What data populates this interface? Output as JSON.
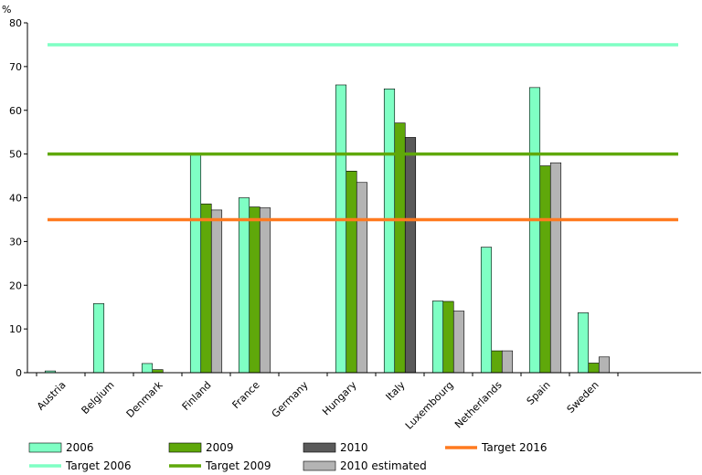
{
  "chart_data": {
    "type": "bar",
    "ylabel": "%",
    "ylim": [
      0,
      80
    ],
    "yticks": [
      0,
      10,
      20,
      30,
      40,
      50,
      60,
      70,
      80
    ],
    "categories": [
      "Austria",
      "Belgium",
      "Denmark",
      "Finland",
      "France",
      "Germany",
      "Hungary",
      "Italy",
      "Luxembourg",
      "Netherlands",
      "Spain",
      "Sweden"
    ],
    "series": [
      {
        "name": "2006",
        "color": "#7fffc4",
        "values": [
          0.4,
          15.8,
          2.1,
          50.0,
          40.0,
          0,
          65.8,
          64.9,
          16.4,
          28.7,
          65.2,
          13.7
        ]
      },
      {
        "name": "2009",
        "color": "#5fa80a",
        "values": [
          0,
          0,
          0.7,
          38.6,
          37.9,
          0,
          46.1,
          57.1,
          16.3,
          5.0,
          47.3,
          2.2
        ]
      },
      {
        "name": "2010",
        "color": "#5a5a5a",
        "values": [
          null,
          null,
          null,
          null,
          null,
          null,
          null,
          53.8,
          null,
          null,
          null,
          null
        ]
      },
      {
        "name": "2010 estimated",
        "color": "#b4b4b4",
        "values": [
          0,
          0,
          0,
          37.2,
          37.7,
          0,
          43.5,
          null,
          14.1,
          5.0,
          48.0,
          3.6
        ]
      }
    ],
    "targets": [
      {
        "name": "Target 2006",
        "value": 75,
        "color": "#7fffc4"
      },
      {
        "name": "Target 2009",
        "value": 50,
        "color": "#5fa80a"
      },
      {
        "name": "Target 2016",
        "value": 35,
        "color": "#ff7a1f"
      }
    ],
    "legend": {
      "placement": "bottom",
      "items": [
        {
          "label": "2006",
          "kind": "box",
          "color": "#7fffc4"
        },
        {
          "label": "2009",
          "kind": "box",
          "color": "#5fa80a"
        },
        {
          "label": "2010",
          "kind": "box",
          "color": "#5a5a5a"
        },
        {
          "label": "Target 2016",
          "kind": "line",
          "color": "#ff7a1f"
        },
        {
          "label": "Target 2006",
          "kind": "line",
          "color": "#7fffc4"
        },
        {
          "label": "Target 2009",
          "kind": "line",
          "color": "#5fa80a"
        },
        {
          "label": "2010 estimated",
          "kind": "box",
          "color": "#b4b4b4"
        }
      ]
    }
  }
}
